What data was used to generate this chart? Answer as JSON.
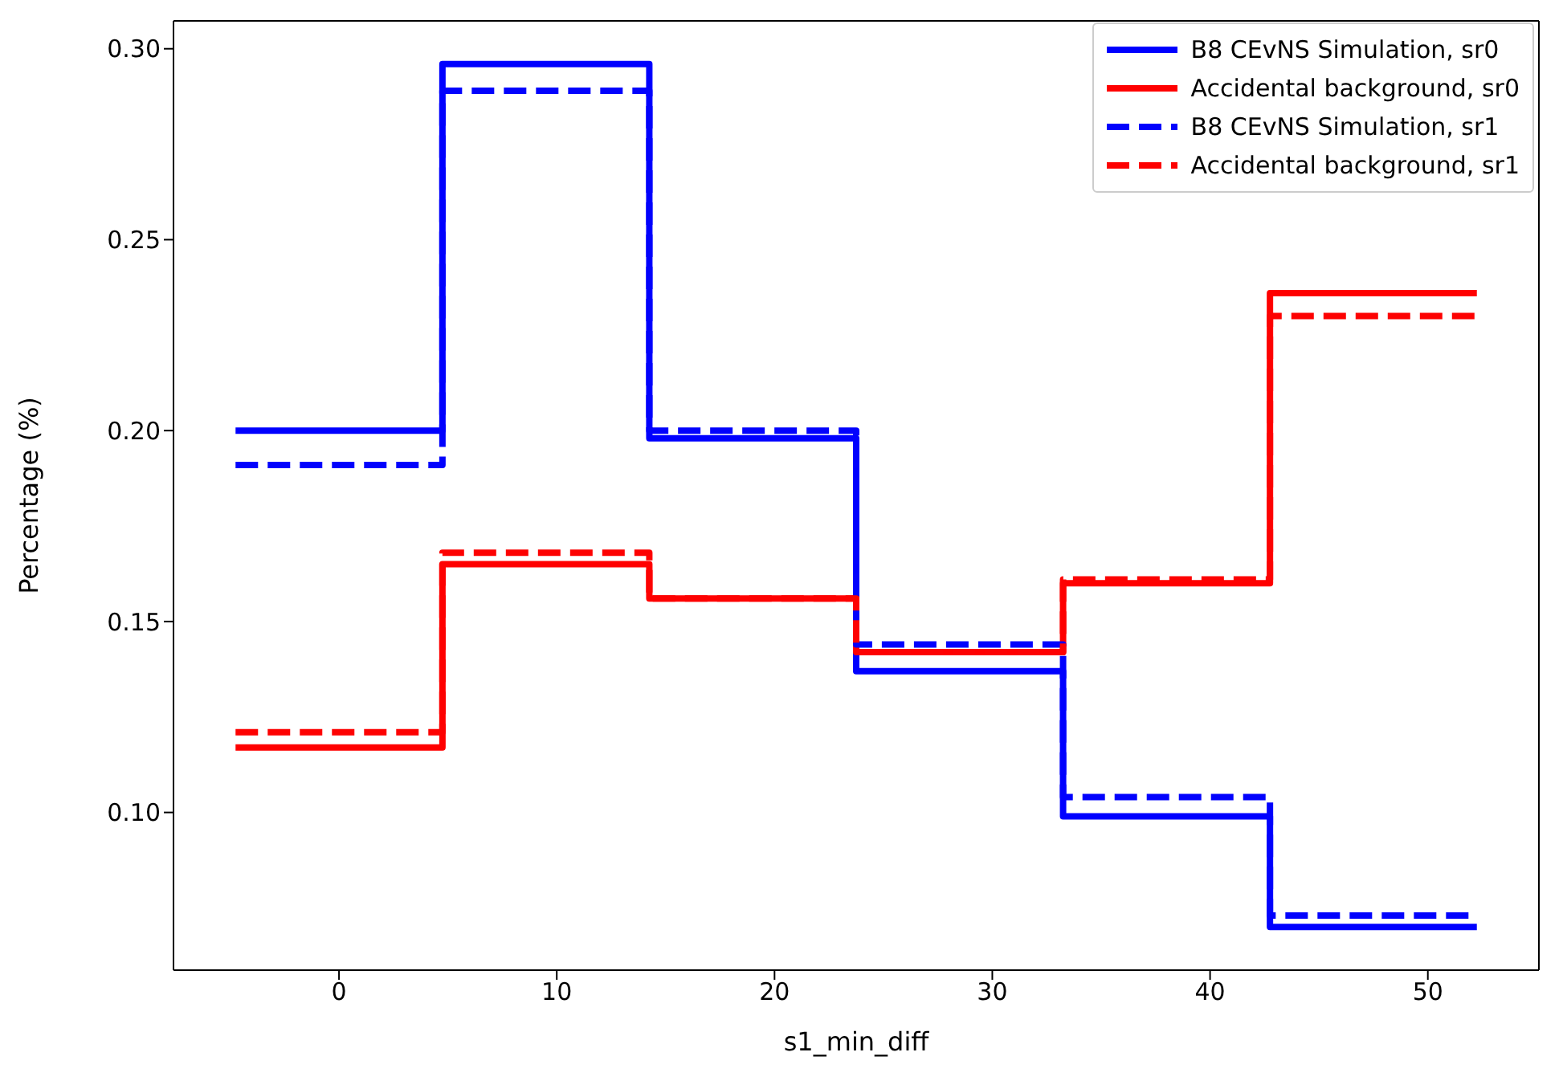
{
  "chart_data": {
    "type": "histogram",
    "xlabel": "s1_min_diff",
    "ylabel": "Percentage (%)",
    "bins": [
      -4.75,
      4.75,
      14.25,
      23.75,
      33.25,
      42.75,
      52.25
    ],
    "series": [
      {
        "name": "B8 CEvNS Simulation, sr0",
        "color": "#0000ff",
        "line_style": "solid",
        "values": [
          0.2,
          0.296,
          0.198,
          0.137,
          0.099,
          0.07
        ]
      },
      {
        "name": "Accidental background, sr0",
        "color": "#ff0000",
        "line_style": "solid",
        "values": [
          0.117,
          0.165,
          0.156,
          0.142,
          0.16,
          0.236
        ]
      },
      {
        "name": "B8 CEvNS Simulation, sr1",
        "color": "#0202fd",
        "line_style": "dashed",
        "values": [
          0.191,
          0.289,
          0.2,
          0.144,
          0.104,
          0.073
        ]
      },
      {
        "name": "Accidental background, sr1",
        "color": "#fd0202",
        "line_style": "dashed",
        "values": [
          0.121,
          0.168,
          0.156,
          0.142,
          0.161,
          0.23
        ]
      }
    ],
    "xlim": [
      -7.6,
      55.1
    ],
    "xticks": [
      0,
      10,
      20,
      30,
      40,
      50
    ],
    "ylim": [
      0.0587,
      0.3073
    ],
    "yticks": [
      {
        "value": 0.1,
        "label": "0.10"
      },
      0.15,
      {
        "value": 0.2,
        "label": "0.20"
      },
      0.25,
      {
        "value": 0.3,
        "label": "0.30"
      }
    ],
    "grid": false,
    "legend": "top right"
  }
}
